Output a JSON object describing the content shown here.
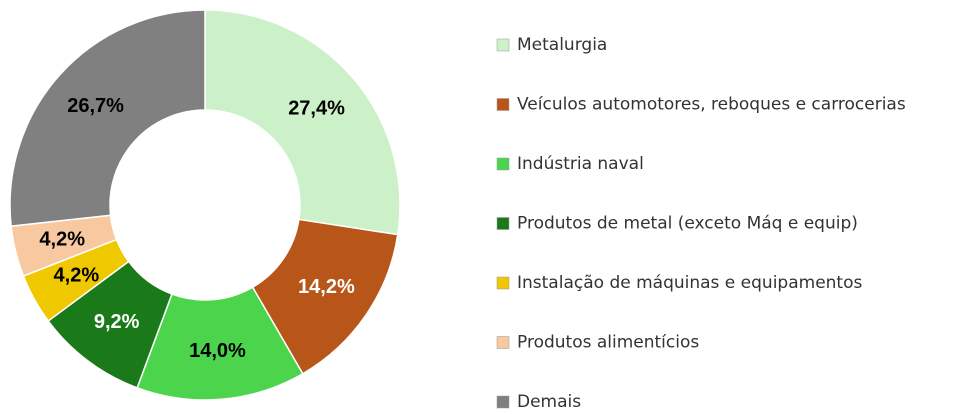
{
  "chart_data": {
    "type": "donut",
    "categories": [
      "Metalurgia",
      "Veículos automotores, reboques e carrocerias",
      "Indústria naval",
      "Produtos de metal (exceto Máq e equip)",
      "Instalação de máquinas e equipamentos",
      "Produtos alimentícios",
      "Demais"
    ],
    "values": [
      27.4,
      14.2,
      14.0,
      9.2,
      4.2,
      4.2,
      26.7
    ],
    "value_labels": [
      "27,4%",
      "14,2%",
      "14,0%",
      "9,2%",
      "4,2%",
      "4,2%",
      "26,7%"
    ],
    "colors": [
      "#ccf0c8",
      "#b8561a",
      "#4cd44c",
      "#1a7a1a",
      "#f0c800",
      "#f8c8a0",
      "#808080"
    ],
    "legend": "right"
  }
}
